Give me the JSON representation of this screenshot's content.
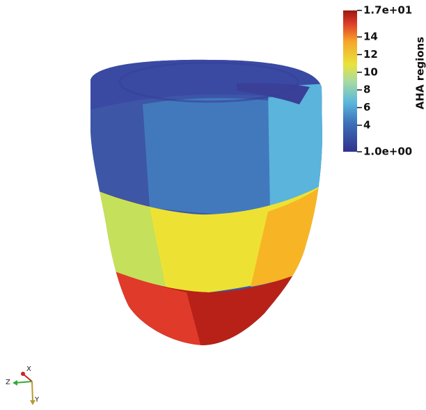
{
  "colorbar": {
    "title": "AHA regions",
    "range": [
      1,
      17
    ],
    "range_labels": [
      "1.0e+00",
      "1.7e+01"
    ],
    "ticks": [
      4,
      6,
      8,
      10,
      12,
      14
    ]
  },
  "orientation_axes": {
    "x": "X",
    "y": "Y",
    "z": "Z"
  }
}
